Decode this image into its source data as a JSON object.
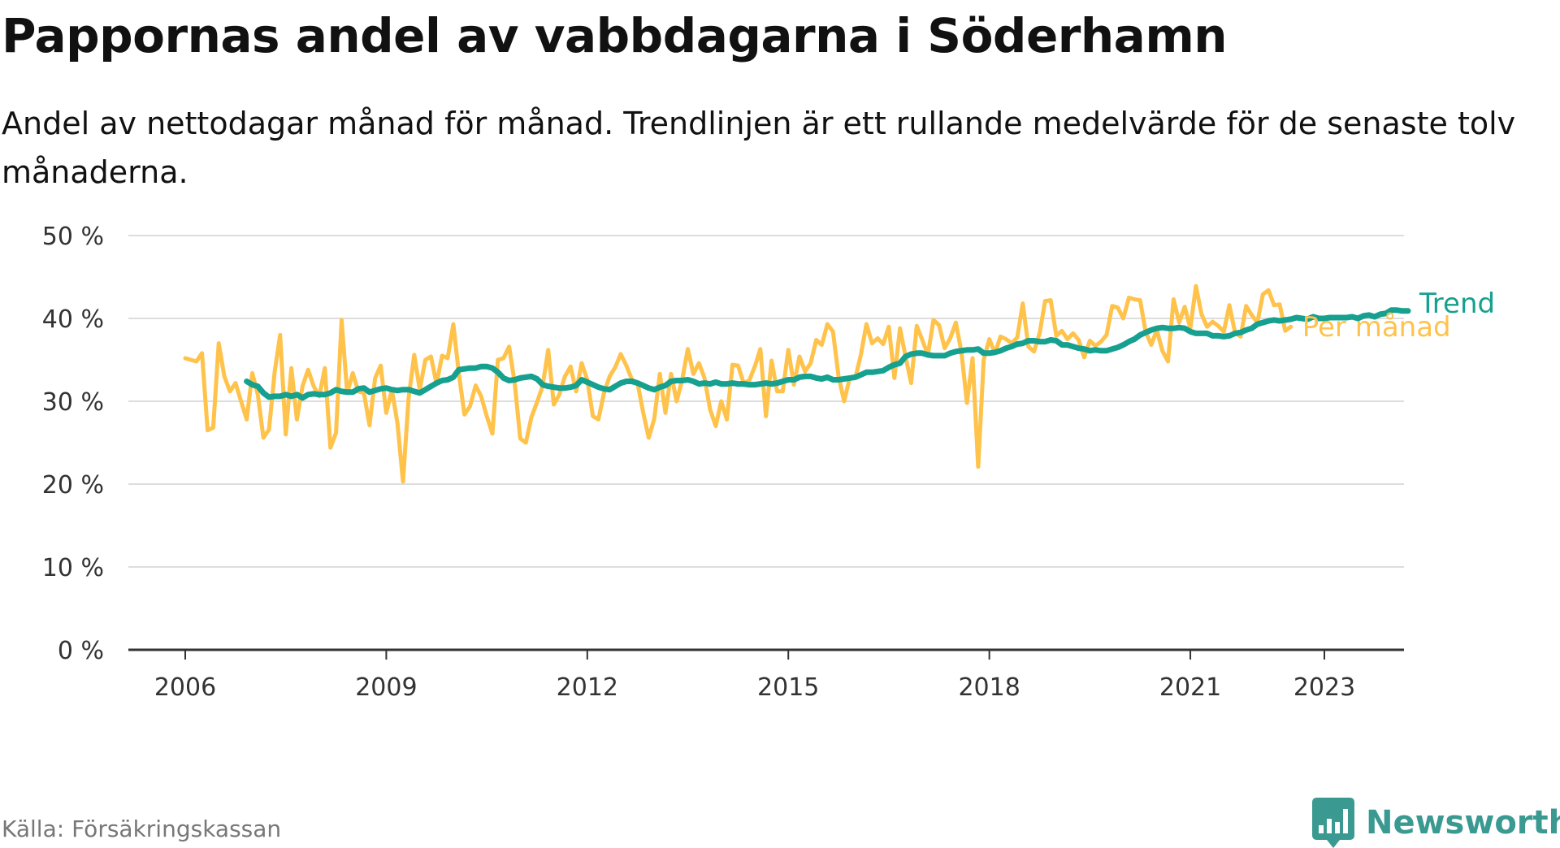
{
  "title": "Pappornas andel av vabbdagarna i Söderhamn",
  "subtitle": "Andel av nettodagar månad för månad. Trendlinjen är ett rullande medelvärde för de senaste tolv månaderna.",
  "source": "Källa: Försäkringskassan",
  "brand": "Newsworthy",
  "colors": {
    "monthly": "#FFC24A",
    "trend": "#16A08F",
    "grid": "#DDDDDD",
    "axis": "#333333",
    "brand": "#3A9A91"
  },
  "chart_data": {
    "type": "line",
    "x_unit": "year",
    "y_unit": "percent",
    "ylim": [
      0,
      50
    ],
    "xlim": [
      2005.2,
      2024.2
    ],
    "y_ticks": [
      0,
      10,
      20,
      30,
      40,
      50
    ],
    "y_tick_labels": [
      "0 %",
      "10 %",
      "20 %",
      "30 %",
      "40 %",
      "50 %"
    ],
    "x_ticks": [
      2006,
      2009,
      2012,
      2015,
      2018,
      2021,
      2023
    ],
    "x_tick_labels": [
      "2006",
      "2009",
      "2012",
      "2015",
      "2018",
      "2021",
      "2023"
    ],
    "grid": true,
    "legend": "inline-right",
    "series": [
      {
        "name": "Per månad",
        "key": "monthly",
        "start": 2006,
        "step": 0.08333,
        "values": [
          35.2,
          35,
          34.8,
          35.8,
          26.5,
          26.8,
          37,
          33,
          31.2,
          32.2,
          30,
          27.8,
          33.4,
          30.8,
          25.6,
          26.6,
          33.5,
          38,
          26,
          34,
          27.8,
          31.8,
          33.8,
          31.8,
          30.6,
          34,
          24.4,
          26.2,
          39.8,
          31,
          33.4,
          31.2,
          31,
          27.1,
          32.8,
          34.3,
          28.6,
          31.4,
          27.4,
          20.3,
          30.4,
          35.6,
          31.4,
          35,
          35.4,
          32.1,
          35.5,
          35.2,
          39.3,
          33.4,
          28.4,
          29.4,
          31.9,
          30.6,
          28.2,
          26.1,
          35,
          35.2,
          36.6,
          32.2,
          25.5,
          25,
          28.1,
          29.9,
          31.8,
          36.2,
          29.6,
          30.8,
          33,
          34.2,
          31.2,
          34.6,
          32.6,
          28.2,
          27.8,
          31,
          33,
          34.1,
          35.7,
          34.3,
          32.6,
          32.2,
          28.7,
          25.6,
          27.9,
          33.3,
          28.6,
          33.3,
          30,
          32.6,
          36.3,
          33.3,
          34.6,
          32.8,
          29,
          27,
          30,
          27.8,
          34.4,
          34.3,
          32.2,
          32.5,
          34.2,
          36.3,
          28.2,
          34.9,
          31.2,
          31.2,
          36.2,
          32,
          35.4,
          33.6,
          34.6,
          37.4,
          36.8,
          39.3,
          38.4,
          33,
          30,
          32.8,
          32.8,
          35.6,
          39.3,
          37,
          37.6,
          36.9,
          39,
          32.8,
          38.8,
          35.4,
          32.2,
          39.1,
          37.4,
          35.6,
          39.8,
          39.2,
          36.4,
          37.6,
          39.5,
          36,
          29.8,
          35.2,
          22.1,
          35,
          37.5,
          35.8,
          37.8,
          37.5,
          37,
          37.7,
          41.8,
          36.6,
          36,
          38.2,
          42.1,
          42.2,
          37.9,
          38.5,
          37.5,
          38.2,
          37.4,
          35.3,
          37.3,
          36.7,
          37.2,
          38,
          41.5,
          41.3,
          40,
          42.5,
          42.3,
          42.2,
          38.4,
          36.8,
          38.6,
          36.1,
          34.8,
          42.3,
          39.5,
          41.4,
          38.8,
          43.9,
          40.5,
          39,
          39.6,
          39.1,
          38.4,
          41.6,
          38.3,
          37.8,
          41.5,
          40.4,
          39.5,
          42.9,
          43.4,
          41.6,
          41.7,
          38.5,
          39
        ]
      },
      {
        "name": "Trend",
        "key": "trend",
        "start": 2006.9167,
        "step": 0.08333,
        "values": [
          32.4,
          32,
          31.8,
          31,
          30.5,
          30.6,
          30.6,
          30.8,
          30.6,
          30.8,
          30.4,
          30.8,
          30.9,
          30.8,
          30.8,
          31,
          31.4,
          31.2,
          31.1,
          31.1,
          31.5,
          31.6,
          31.1,
          31.3,
          31.5,
          31.6,
          31.4,
          31.3,
          31.4,
          31.4,
          31.2,
          31,
          31.4,
          31.8,
          32.2,
          32.5,
          32.6,
          32.9,
          33.8,
          33.9,
          34,
          34,
          34.2,
          34.2,
          34,
          33.5,
          32.8,
          32.5,
          32.6,
          32.8,
          32.9,
          33,
          32.7,
          32,
          31.8,
          31.7,
          31.6,
          31.6,
          31.7,
          31.9,
          32.6,
          32.3,
          32,
          31.7,
          31.5,
          31.4,
          31.8,
          32.2,
          32.4,
          32.4,
          32.2,
          31.9,
          31.6,
          31.4,
          31.7,
          31.9,
          32.4,
          32.5,
          32.5,
          32.6,
          32.4,
          32.1,
          32.2,
          32.1,
          32.3,
          32.1,
          32.1,
          32.2,
          32.1,
          32.1,
          32,
          32,
          32.1,
          32.2,
          32.1,
          32.2,
          32.4,
          32.6,
          32.6,
          32.9,
          33,
          33,
          32.8,
          32.7,
          32.9,
          32.6,
          32.6,
          32.7,
          32.8,
          32.9,
          33.2,
          33.5,
          33.5,
          33.6,
          33.7,
          34.1,
          34.4,
          34.6,
          35.4,
          35.7,
          35.8,
          35.8,
          35.6,
          35.5,
          35.5,
          35.5,
          35.8,
          36,
          36.1,
          36.2,
          36.2,
          36.3,
          35.8,
          35.8,
          35.9,
          36.1,
          36.4,
          36.6,
          36.9,
          37,
          37.3,
          37.3,
          37.2,
          37.2,
          37.4,
          37.3,
          36.8,
          36.8,
          36.6,
          36.4,
          36.3,
          36.1,
          36.2,
          36.1,
          36.1,
          36.3,
          36.5,
          36.8,
          37.2,
          37.5,
          38,
          38.3,
          38.6,
          38.8,
          38.9,
          38.8,
          38.8,
          38.9,
          38.8,
          38.4,
          38.2,
          38.2,
          38.2,
          37.9,
          37.9,
          37.8,
          37.9,
          38.2,
          38.3,
          38.6,
          38.8,
          39.3,
          39.5,
          39.7,
          39.8,
          39.7,
          39.8,
          39.9,
          40.1,
          40,
          39.9,
          40.2,
          40,
          40,
          40.1,
          40.1,
          40.1,
          40.1,
          40.2,
          40,
          40.3,
          40.4,
          40.2,
          40.5,
          40.6,
          41,
          41,
          40.9,
          40.9
        ]
      }
    ]
  }
}
